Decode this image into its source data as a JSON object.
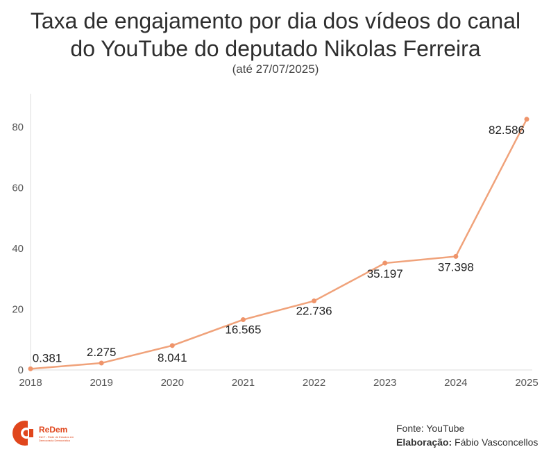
{
  "title_line1": "Taxa de engajamento por dia dos vídeos do canal",
  "title_line2": "do YouTube do deputado Nikolas Ferreira",
  "subtitle": "(até 27/07/2025)",
  "colors": {
    "line": "#f0a27a",
    "point": "#ef946a",
    "axis": "#dddddd"
  },
  "chart_data": {
    "type": "line",
    "x": [
      "2018",
      "2019",
      "2020",
      "2021",
      "2022",
      "2023",
      "2024",
      "2025"
    ],
    "values": [
      0.381,
      2.275,
      8.041,
      16.565,
      22.736,
      35.197,
      37.398,
      82.586
    ],
    "value_labels": [
      "0.381",
      "2.275",
      "8.041",
      "16.565",
      "22.736",
      "35.197",
      "37.398",
      "82.586"
    ],
    "yticks": [
      0,
      20,
      40,
      60,
      80
    ],
    "ylim": [
      0,
      91
    ],
    "grid": false
  },
  "footer": {
    "source": "Fonte: YouTube",
    "credit_label": "Elaboração:",
    "credit_name": "Fábio Vasconcellos"
  },
  "logo": {
    "name": "ReDem",
    "tagline": "INCT - Rede de Estudos em Democracia Democrática"
  }
}
